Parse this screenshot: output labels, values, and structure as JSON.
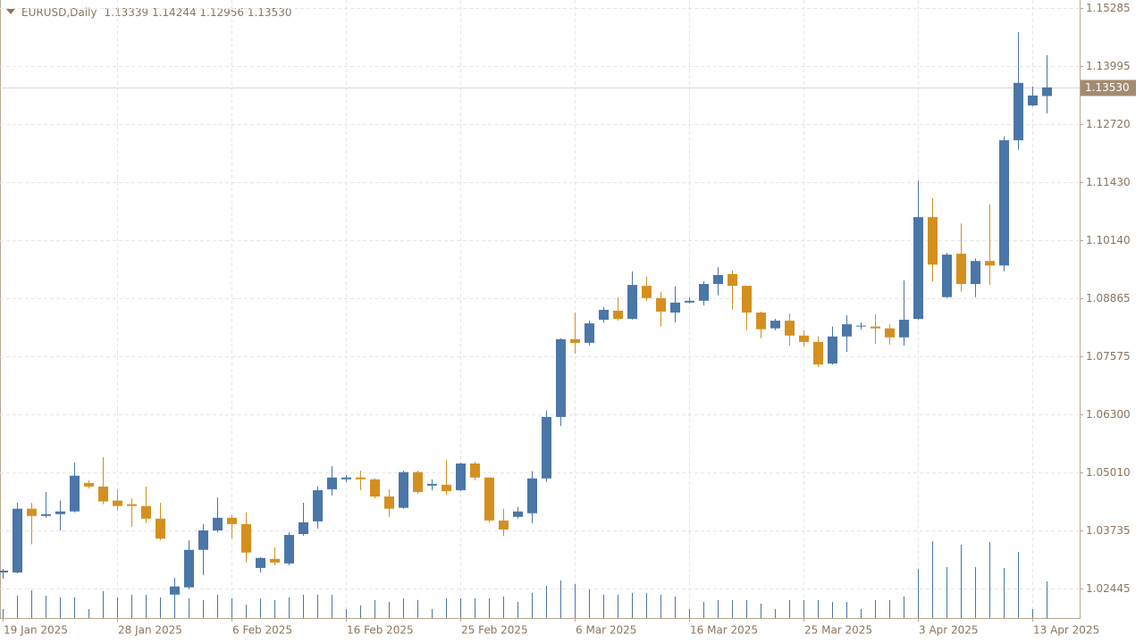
{
  "chart_data": {
    "type": "candlestick",
    "title": "EURUSD,Daily",
    "subtitle": "1.13339 1.14244 1.12956 1.13530",
    "categories": [
      "19 Jan 2025",
      null,
      null,
      null,
      null,
      null,
      null,
      null,
      "28 Jan 2025",
      null,
      null,
      null,
      null,
      null,
      null,
      null,
      "6 Feb 2025",
      null,
      null,
      null,
      null,
      null,
      null,
      null,
      "16 Feb 2025",
      null,
      null,
      null,
      null,
      null,
      null,
      null,
      "25 Feb 2025",
      null,
      null,
      null,
      null,
      null,
      null,
      null,
      "6 Mar 2025",
      null,
      null,
      null,
      null,
      null,
      null,
      null,
      "16 Mar 2025",
      null,
      null,
      null,
      null,
      null,
      null,
      null,
      "25 Mar 2025",
      null,
      null,
      null,
      null,
      null,
      null,
      null,
      "3 Apr 2025",
      null,
      null,
      null,
      null,
      null,
      null,
      null,
      "13 Apr 2025",
      null
    ],
    "open": [
      1.028,
      1.028,
      1.0421,
      1.0405,
      1.0409,
      1.0415,
      1.0478,
      1.047,
      1.0439,
      1.0431,
      1.0427,
      1.0399,
      1.0231,
      1.0247,
      1.033,
      1.0373,
      1.0401,
      1.0387,
      1.029,
      1.031,
      1.03,
      1.0365,
      1.0393,
      1.0464,
      1.0486,
      1.049,
      1.0486,
      1.0448,
      1.0423,
      1.0502,
      1.0472,
      1.0474,
      1.0462,
      1.0521,
      1.049,
      1.0395,
      1.0403,
      1.0411,
      1.0488,
      1.0624,
      1.0796,
      1.0788,
      1.0839,
      1.0859,
      1.0841,
      1.0914,
      1.0887,
      1.0855,
      1.0877,
      1.0881,
      1.0918,
      1.094,
      1.0914,
      1.0855,
      1.082,
      1.0837,
      1.0804,
      1.079,
      1.0742,
      1.0802,
      1.0824,
      1.0824,
      1.082,
      1.08,
      1.0841,
      1.1066,
      1.0889,
      1.0985,
      1.0918,
      1.0969,
      1.0959,
      1.1236,
      1.1313,
      1.13339
    ],
    "high": [
      1.0288,
      1.0434,
      1.0434,
      1.0458,
      1.0439,
      1.0523,
      1.0484,
      1.0535,
      1.0464,
      1.0444,
      1.047,
      1.0434,
      1.0268,
      1.0351,
      1.0387,
      1.0446,
      1.0407,
      1.0413,
      1.0314,
      1.0336,
      1.0369,
      1.0434,
      1.047,
      1.0515,
      1.0496,
      1.0505,
      1.0488,
      1.0464,
      1.0505,
      1.0505,
      1.0486,
      1.0529,
      1.0523,
      1.0525,
      1.049,
      1.0421,
      1.0425,
      1.0504,
      1.0638,
      1.0798,
      1.0855,
      1.0837,
      1.0867,
      1.0889,
      1.0946,
      1.0934,
      1.0901,
      1.0913,
      1.0889,
      1.0924,
      1.0955,
      1.0948,
      1.0914,
      1.0857,
      1.0841,
      1.0853,
      1.0816,
      1.0802,
      1.0824,
      1.0849,
      1.0833,
      1.0851,
      1.0829,
      1.0926,
      1.1147,
      1.1108,
      1.0987,
      1.1052,
      1.0975,
      1.1094,
      1.1244,
      1.1475,
      1.1355,
      1.14244
    ],
    "low": [
      1.0266,
      1.0278,
      1.0342,
      1.0401,
      1.0373,
      1.0413,
      1.0466,
      1.0431,
      1.0417,
      1.0381,
      1.0389,
      1.0351,
      1.0229,
      1.0243,
      1.0274,
      1.0369,
      1.0355,
      1.0302,
      1.028,
      1.0296,
      1.0296,
      1.0361,
      1.0377,
      1.045,
      1.048,
      1.0462,
      1.0444,
      1.0403,
      1.0421,
      1.0454,
      1.0462,
      1.0452,
      1.046,
      1.0484,
      1.0391,
      1.0361,
      1.0399,
      1.0389,
      1.048,
      1.0604,
      1.0764,
      1.0782,
      1.0833,
      1.0837,
      1.0839,
      1.0881,
      1.0824,
      1.0833,
      1.0875,
      1.0871,
      1.0893,
      1.0861,
      1.0816,
      1.0798,
      1.0816,
      1.0782,
      1.078,
      1.0734,
      1.074,
      1.0768,
      1.0818,
      1.0786,
      1.0784,
      1.0782,
      1.0839,
      1.0924,
      1.0887,
      1.0901,
      1.0889,
      1.0916,
      1.0946,
      1.1215,
      1.1311,
      1.12956
    ],
    "close": [
      1.0284,
      1.0421,
      1.0405,
      1.0409,
      1.0415,
      1.0494,
      1.047,
      1.0437,
      1.0427,
      1.0427,
      1.0399,
      1.0355,
      1.0249,
      1.033,
      1.0373,
      1.0401,
      1.0387,
      1.0324,
      1.0312,
      1.0302,
      1.0363,
      1.0391,
      1.0462,
      1.049,
      1.049,
      1.0486,
      1.0448,
      1.0421,
      1.0502,
      1.0458,
      1.0476,
      1.046,
      1.0521,
      1.049,
      1.0395,
      1.0375,
      1.0415,
      1.0488,
      1.0624,
      1.0796,
      1.0788,
      1.0831,
      1.0861,
      1.0841,
      1.0916,
      1.0887,
      1.0857,
      1.0877,
      1.0881,
      1.0918,
      1.0938,
      1.0914,
      1.0855,
      1.0818,
      1.0837,
      1.0804,
      1.079,
      1.074,
      1.0802,
      1.0829,
      1.0826,
      1.082,
      1.08,
      1.0839,
      1.1066,
      1.0961,
      1.0983,
      1.0918,
      1.0969,
      1.0959,
      1.1236,
      1.1363,
      1.1335,
      1.1353
    ],
    "volume": [
      10,
      25,
      31,
      25,
      23,
      23,
      10,
      30,
      23,
      26,
      26,
      23,
      34,
      22,
      20,
      26,
      22,
      15,
      22,
      20,
      23,
      26,
      26,
      26,
      10,
      14,
      20,
      18,
      22,
      20,
      10,
      22,
      22,
      22,
      22,
      24,
      18,
      28,
      36,
      42,
      38,
      32,
      26,
      26,
      28,
      28,
      26,
      24,
      10,
      18,
      20,
      20,
      20,
      16,
      10,
      20,
      20,
      20,
      18,
      18,
      10,
      20,
      20,
      24,
      55,
      86,
      57,
      82,
      57,
      85,
      56,
      74,
      10,
      41
    ],
    "up_color": "#4a76a8",
    "down_color": "#d4901f",
    "volume_color": "#4a76a8",
    "ylim": [
      1.01793,
      1.15463
    ],
    "yticks": [
      1.15285,
      1.13995,
      {
        "value": 1.1272,
        "label": "1.12720"
      },
      {
        "value": 1.1143,
        "label": "1.11430"
      },
      {
        "value": 1.1014,
        "label": "1.10140"
      },
      1.08865,
      1.07575,
      {
        "value": 1.063,
        "label": "1.06300"
      },
      {
        "value": 1.0501,
        "label": "1.05010"
      },
      1.03735,
      1.02445
    ],
    "grid": true,
    "last_price": {
      "value": 1.1353,
      "label": "1.13530"
    }
  }
}
